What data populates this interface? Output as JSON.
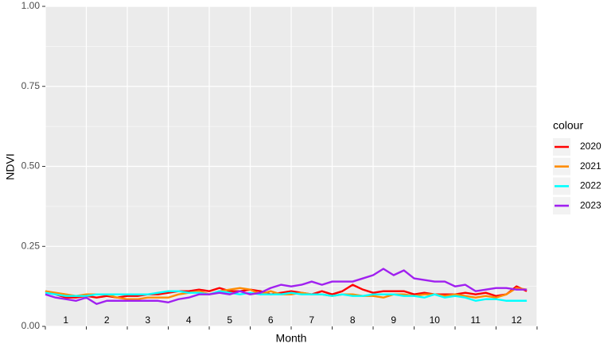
{
  "chart_data": {
    "type": "line",
    "xlabel": "Month",
    "ylabel": "NDVI",
    "legend_title": "colour",
    "legend_position": "right",
    "xlim": [
      1,
      13
    ],
    "xticks": [
      {
        "value": 1.5,
        "label": "1"
      },
      {
        "value": 2.5,
        "label": "2"
      },
      {
        "value": 3.5,
        "label": "3"
      },
      {
        "value": 4.5,
        "label": "4"
      },
      {
        "value": 5.5,
        "label": "5"
      },
      {
        "value": 6.5,
        "label": "6"
      },
      {
        "value": 7.5,
        "label": "7"
      },
      {
        "value": 8.5,
        "label": "8"
      },
      {
        "value": 9.5,
        "label": "9"
      },
      {
        "value": 10.5,
        "label": "10"
      },
      {
        "value": 11.5,
        "label": "11"
      },
      {
        "value": 12.5,
        "label": "12"
      }
    ],
    "ylim": [
      0,
      1
    ],
    "yticks": [
      {
        "value": 0,
        "label": "0.00"
      },
      {
        "value": 0.25,
        "label": "0.25"
      },
      {
        "value": 0.5,
        "label": "0.50"
      },
      {
        "value": 0.75,
        "label": "0.75"
      },
      {
        "value": 1,
        "label": "1.00"
      }
    ],
    "grid": true,
    "x": [
      1,
      1.25,
      1.5,
      1.75,
      2,
      2.25,
      2.5,
      2.75,
      3,
      3.25,
      3.5,
      3.75,
      4,
      4.25,
      4.5,
      4.75,
      5,
      5.25,
      5.5,
      5.75,
      6,
      6.25,
      6.5,
      6.75,
      7,
      7.25,
      7.5,
      7.75,
      8,
      8.25,
      8.5,
      8.75,
      9,
      9.25,
      9.5,
      9.75,
      10,
      10.25,
      10.5,
      10.75,
      11,
      11.25,
      11.5,
      11.75,
      12,
      12.25,
      12.5,
      12.75
    ],
    "series": [
      {
        "name": "2020",
        "color": "#ff0000",
        "values": [
          0.11,
          0.1,
          0.09,
          0.09,
          0.095,
          0.09,
          0.095,
          0.09,
          0.095,
          0.095,
          0.1,
          0.1,
          0.105,
          0.11,
          0.11,
          0.115,
          0.11,
          0.12,
          0.11,
          0.11,
          0.115,
          0.11,
          0.1,
          0.105,
          0.11,
          0.105,
          0.1,
          0.11,
          0.1,
          0.11,
          0.13,
          0.115,
          0.105,
          0.11,
          0.11,
          0.11,
          0.1,
          0.105,
          0.1,
          0.1,
          0.1,
          0.105,
          0.1,
          0.105,
          0.095,
          0.1,
          0.125,
          0.11
        ]
      },
      {
        "name": "2021",
        "color": "#ff8c00",
        "values": [
          0.11,
          0.105,
          0.1,
          0.095,
          0.1,
          0.1,
          0.1,
          0.09,
          0.085,
          0.085,
          0.09,
          0.09,
          0.09,
          0.1,
          0.105,
          0.11,
          0.1,
          0.11,
          0.115,
          0.12,
          0.115,
          0.1,
          0.11,
          0.1,
          0.1,
          0.105,
          0.1,
          0.1,
          0.095,
          0.1,
          0.1,
          0.095,
          0.095,
          0.09,
          0.1,
          0.1,
          0.095,
          0.1,
          0.1,
          0.095,
          0.1,
          0.095,
          0.09,
          0.095,
          0.09,
          0.1,
          0.12,
          0.115
        ]
      },
      {
        "name": "2022",
        "color": "#00ffff",
        "values": [
          0.105,
          0.1,
          0.095,
          0.095,
          0.095,
          0.1,
          0.1,
          0.1,
          0.1,
          0.1,
          0.1,
          0.105,
          0.11,
          0.11,
          0.105,
          0.105,
          0.1,
          0.11,
          0.105,
          0.1,
          0.105,
          0.1,
          0.1,
          0.1,
          0.105,
          0.1,
          0.1,
          0.1,
          0.095,
          0.1,
          0.095,
          0.095,
          0.1,
          0.1,
          0.1,
          0.095,
          0.095,
          0.09,
          0.1,
          0.09,
          0.095,
          0.09,
          0.08,
          0.085,
          0.085,
          0.08,
          0.08,
          0.08
        ]
      },
      {
        "name": "2023",
        "color": "#a020f0",
        "values": [
          0.1,
          0.09,
          0.085,
          0.08,
          0.09,
          0.07,
          0.08,
          0.08,
          0.08,
          0.08,
          0.08,
          0.08,
          0.075,
          0.085,
          0.09,
          0.1,
          0.1,
          0.105,
          0.1,
          0.11,
          0.1,
          0.105,
          0.12,
          0.13,
          0.125,
          0.13,
          0.14,
          0.13,
          0.14,
          0.14,
          0.14,
          0.15,
          0.16,
          0.18,
          0.16,
          0.175,
          0.15,
          0.145,
          0.14,
          0.14,
          0.125,
          0.13,
          0.11,
          0.115,
          0.12,
          0.12,
          0.115,
          0.115
        ]
      }
    ]
  }
}
